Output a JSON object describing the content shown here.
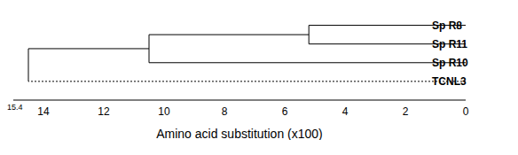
{
  "chart_data": {
    "type": "dendrogram",
    "x_label": "Amino acid substitution (x100)",
    "xlim": [
      15,
      0
    ],
    "xticks": [
      14,
      12,
      10,
      8,
      6,
      4,
      2,
      0
    ],
    "annotations": [
      "15.4"
    ],
    "color": "#000000",
    "tree": {
      "height": 14.5,
      "children": [
        {
          "height": 10.5,
          "children": [
            {
              "height": 5.2,
              "children": [
                {
                  "leaf": "Sp R8"
                },
                {
                  "leaf": "Sp R11"
                }
              ]
            },
            {
              "leaf": "Sp R10"
            }
          ]
        },
        {
          "leaf": "TCNL3",
          "line_style": "dotted"
        }
      ]
    }
  }
}
